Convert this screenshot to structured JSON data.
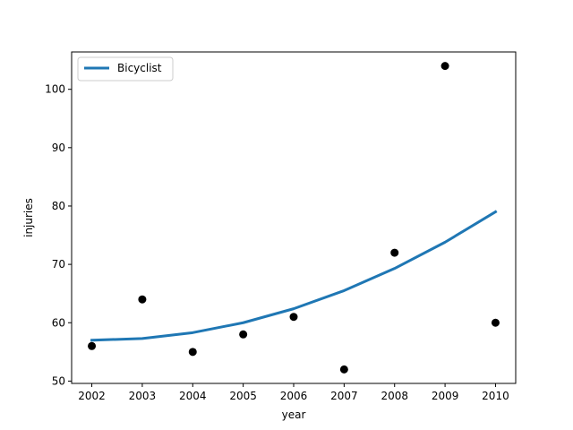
{
  "chart_data": {
    "type": "scatter",
    "xlabel": "year",
    "ylabel": "injuries",
    "xlim": [
      2001.6,
      2010.4
    ],
    "ylim": [
      49.6,
      106.4
    ],
    "xticks": [
      2002,
      2003,
      2004,
      2005,
      2006,
      2007,
      2008,
      2009,
      2010
    ],
    "yticks": [
      50,
      60,
      70,
      80,
      90,
      100
    ],
    "grid": false,
    "legend_position": "top-left",
    "points": {
      "color": "#000000",
      "x": [
        2002,
        2003,
        2004,
        2005,
        2006,
        2007,
        2008,
        2009,
        2010
      ],
      "y": [
        56,
        64,
        55,
        58,
        61,
        52,
        72,
        104,
        60
      ]
    },
    "series": [
      {
        "name": "Bicyclist",
        "type": "line",
        "color": "#1f77b4",
        "x": [
          2002,
          2003,
          2004,
          2005,
          2006,
          2007,
          2008,
          2009,
          2010
        ],
        "y": [
          57.0,
          57.3,
          58.3,
          60.0,
          62.4,
          65.5,
          69.3,
          73.8,
          79.0
        ]
      }
    ]
  }
}
